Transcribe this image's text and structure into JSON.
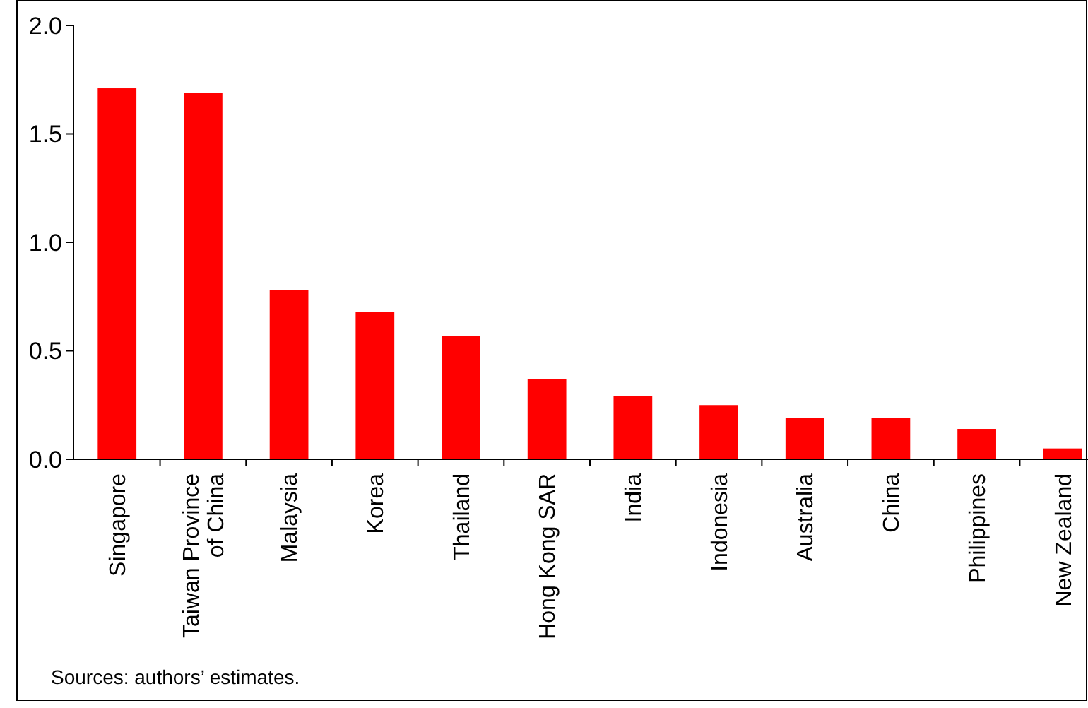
{
  "chart_data": {
    "type": "bar",
    "categories": [
      "Singapore",
      "Taiwan Province of China",
      "Malaysia",
      "Korea",
      "Thailand",
      "Hong Kong SAR",
      "India",
      "Indonesia",
      "Australia",
      "China",
      "Philippines",
      "New Zealand"
    ],
    "values": [
      1.71,
      1.69,
      0.78,
      0.68,
      0.57,
      0.37,
      0.29,
      0.25,
      0.19,
      0.19,
      0.14,
      0.05
    ],
    "color": "#ff0000",
    "ylim": [
      0,
      2
    ],
    "yticks": [
      {
        "value": 0,
        "label": "0.0"
      },
      {
        "value": 0.5,
        "label": "0.5"
      },
      {
        "value": 1,
        "label": "1.0"
      },
      {
        "value": 1.5,
        "label": "1.5"
      },
      {
        "value": 2,
        "label": "2.0"
      }
    ],
    "grid": false,
    "annotations": [
      "Sources: authors’ estimates."
    ]
  }
}
